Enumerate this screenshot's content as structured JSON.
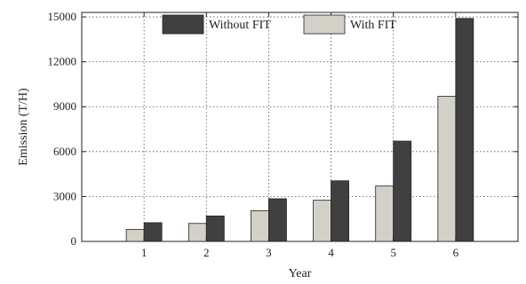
{
  "chart_data": {
    "type": "bar",
    "xlabel": "Year",
    "ylabel": "Emission (T/H)",
    "categories": [
      "1",
      "2",
      "3",
      "4",
      "5",
      "6"
    ],
    "ylim": [
      0,
      15300
    ],
    "yticks": [
      0,
      3000,
      6000,
      9000,
      12000,
      15000
    ],
    "grid": "dotted",
    "legend_position": "top",
    "series": [
      {
        "name": "With FIT",
        "color": "#d3d0c8",
        "values": [
          800,
          1200,
          2050,
          2750,
          3700,
          9700
        ]
      },
      {
        "name": "Without FIT",
        "color": "#404040",
        "values": [
          1250,
          1700,
          2850,
          4050,
          6700,
          14900
        ]
      }
    ]
  }
}
